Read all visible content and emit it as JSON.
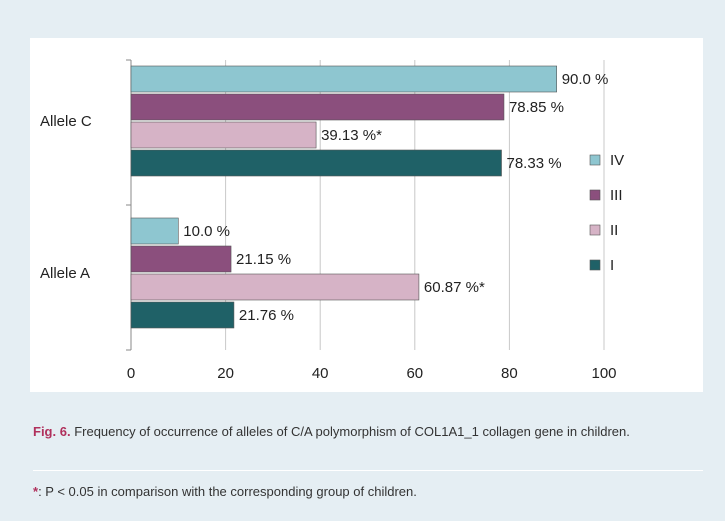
{
  "chart_data": {
    "type": "bar",
    "orientation": "horizontal",
    "categories": [
      "Allele C",
      "Allele A"
    ],
    "series": [
      {
        "name": "IV",
        "color": "#8ec6d0",
        "values": [
          90.0,
          10.0
        ],
        "value_labels": [
          "90.0 %",
          "10.0 %"
        ]
      },
      {
        "name": "III",
        "color": "#8b4f7d",
        "values": [
          78.85,
          21.15
        ],
        "value_labels": [
          "78.85 %",
          "21.15 %"
        ]
      },
      {
        "name": "II",
        "color": "#d6b3c6",
        "values": [
          39.13,
          60.87
        ],
        "value_labels": [
          "39.13 %*",
          "60.87 %*"
        ]
      },
      {
        "name": "I",
        "color": "#1f6167",
        "values": [
          78.33,
          21.76
        ],
        "value_labels": [
          "78.33 %",
          "21.76 %"
        ]
      }
    ],
    "xlim": [
      0,
      100
    ],
    "xticks": [
      0,
      20,
      40,
      60,
      80,
      100
    ],
    "grid": true,
    "legend": "right"
  },
  "caption": {
    "label": "Fig. 6.",
    "text": "Frequency of occurrence of alleles of C/A polymorphism of COL1A1_1 collagen gene in children."
  },
  "footnote": {
    "symbol": "*",
    "text": ": P < 0.05 in comparison with the corresponding group of children."
  }
}
